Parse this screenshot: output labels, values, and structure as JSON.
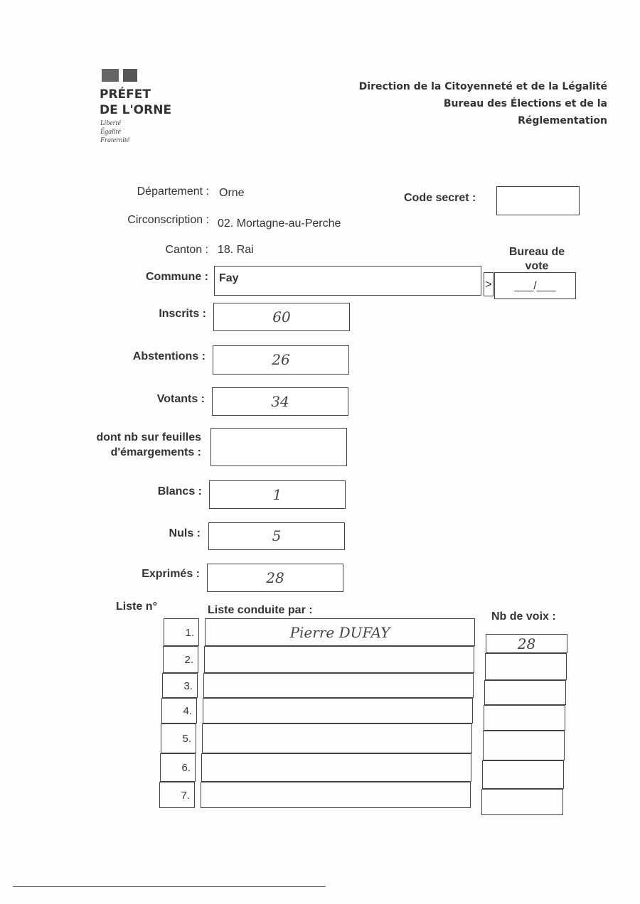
{
  "header": {
    "logo_line1": "PRÉFET",
    "logo_line2": "DE L'ORNE",
    "motto": [
      "Liberté",
      "Égalité",
      "Fraternité"
    ],
    "direction": "Direction de la Citoyenneté et de la Légalité",
    "bureau_line1": "Bureau des Élections et de la",
    "bureau_line2": "Réglementation"
  },
  "fields": {
    "departement_label": "Département :",
    "departement_value": "Orne",
    "circonscription_label": "Circonscription :",
    "circonscription_value": "02. Mortagne-au-Perche",
    "canton_label": "Canton :",
    "canton_value": "18. Rai",
    "code_secret_label": "Code secret :",
    "code_secret_value": "",
    "commune_label": "Commune :",
    "commune_value": "Fay",
    "bureau_label": "Bureau de vote",
    "bureau_value": "___/___",
    "arrow": ">",
    "inscrits_label": "Inscrits :",
    "inscrits_value": "60",
    "abstentions_label": "Abstentions :",
    "abstentions_value": "26",
    "votants_label": "Votants :",
    "votants_value": "34",
    "emargement_label_1": "dont nb sur feuilles",
    "emargement_label_2": "d'émargements :",
    "emargement_value": "",
    "blancs_label": "Blancs :",
    "blancs_value": "1",
    "nuls_label": "Nuls :",
    "nuls_value": "5",
    "exprimes_label": "Exprimés :",
    "exprimes_value": "28"
  },
  "table": {
    "col_num": "Liste n°",
    "col_name": "Liste conduite par :",
    "col_votes": "Nb de voix :",
    "rows": [
      {
        "n": "1.",
        "name": "Pierre DUFAY",
        "votes": "28"
      },
      {
        "n": "2.",
        "name": "",
        "votes": ""
      },
      {
        "n": "3.",
        "name": "",
        "votes": ""
      },
      {
        "n": "4.",
        "name": "",
        "votes": ""
      },
      {
        "n": "5.",
        "name": "",
        "votes": ""
      },
      {
        "n": "6.",
        "name": "",
        "votes": ""
      },
      {
        "n": "7.",
        "name": "",
        "votes": ""
      }
    ]
  }
}
